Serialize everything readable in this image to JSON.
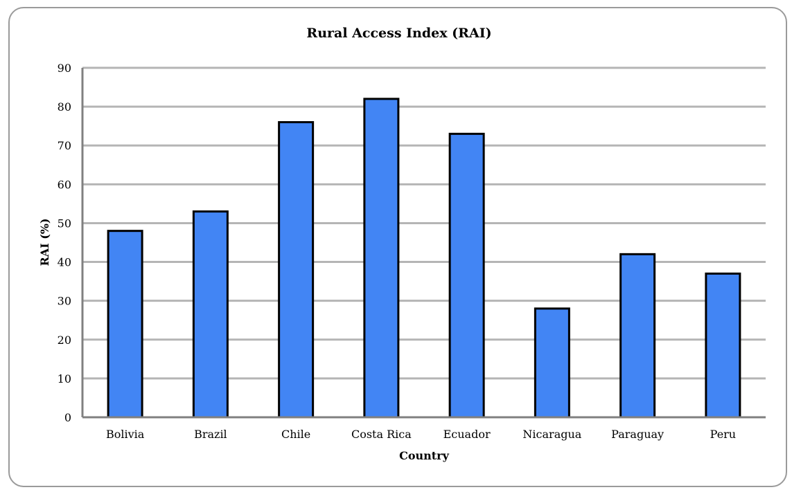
{
  "chart_data": {
    "type": "bar",
    "title": "Rural Access Index (RAI)",
    "xlabel": "Country",
    "ylabel": "RAI (%)",
    "categories": [
      "Bolivia",
      "Brazil",
      "Chile",
      "Costa Rica",
      "Ecuador",
      "Nicaragua",
      "Paraguay",
      "Peru"
    ],
    "values": [
      48,
      53,
      76,
      82,
      73,
      28,
      42,
      37
    ],
    "ylim": [
      0,
      90
    ],
    "yticks": [
      0,
      10,
      20,
      30,
      40,
      50,
      60,
      70,
      80,
      90
    ],
    "grid": true,
    "bar_color": "#4285f4",
    "bar_edge_color": "#000000"
  }
}
